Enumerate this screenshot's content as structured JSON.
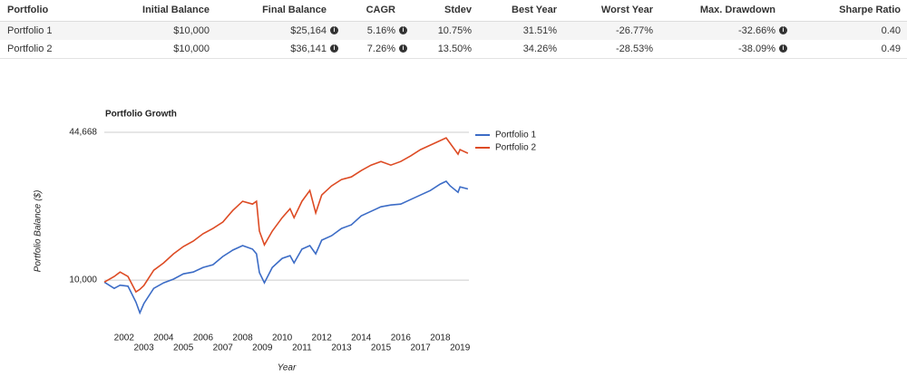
{
  "table": {
    "header": [
      "Portfolio",
      "Initial Balance",
      "Final Balance",
      "CAGR",
      "Stdev",
      "Best Year",
      "Worst Year",
      "Max. Drawdown",
      "Sharpe Ratio"
    ],
    "rows": [
      [
        "Portfolio 1",
        "$10,000",
        "$25,164",
        "5.16%",
        "10.75%",
        "31.51%",
        "-26.77%",
        "-32.66%",
        "0.40"
      ],
      [
        "Portfolio 2",
        "$10,000",
        "$36,141",
        "7.26%",
        "13.50%",
        "34.26%",
        "-28.53%",
        "-38.09%",
        "0.49"
      ]
    ]
  },
  "chart_data": {
    "type": "line",
    "title": "Portfolio Growth",
    "x_label": "Year",
    "y_label": "Portfolio Balance ($)",
    "log_scale": true,
    "grid": true,
    "legend": "right",
    "x": [
      2001,
      2001.5,
      2001.8,
      2002.2,
      2002.6,
      2002.8,
      2003,
      2003.5,
      2004,
      2004.5,
      2005,
      2005.5,
      2006,
      2006.5,
      2007,
      2007.5,
      2008,
      2008.5,
      2008.7,
      2008.85,
      2009.1,
      2009.5,
      2010,
      2010.4,
      2010.6,
      2011,
      2011.4,
      2011.7,
      2012,
      2012.5,
      2013,
      2013.5,
      2014,
      2014.5,
      2015,
      2015.5,
      2016,
      2016.5,
      2017,
      2017.5,
      2018,
      2018.3,
      2018.5,
      2018.9,
      2019,
      2019.4
    ],
    "series": [
      {
        "name": "Portfolio 1",
        "color": "#3c6cc6",
        "values": [
          9800,
          9200,
          9500,
          9400,
          8000,
          7180,
          7880,
          9200,
          9730,
          10100,
          10650,
          10850,
          11370,
          11690,
          12700,
          13550,
          14180,
          13680,
          13050,
          10800,
          9730,
          11370,
          12460,
          12810,
          11900,
          13680,
          14180,
          13050,
          14980,
          15680,
          16870,
          17500,
          19170,
          20060,
          21000,
          21400,
          21590,
          22610,
          23670,
          24790,
          26450,
          27200,
          25960,
          24340,
          25710,
          25164
        ]
      },
      {
        "name": "Portfolio 2",
        "color": "#dd4b24",
        "values": [
          9800,
          10370,
          10850,
          10370,
          8870,
          9100,
          9460,
          11050,
          11900,
          13050,
          14050,
          14840,
          16000,
          16870,
          18000,
          20230,
          22210,
          21590,
          22210,
          16420,
          14290,
          16420,
          18820,
          20600,
          18820,
          22210,
          24790,
          19740,
          23670,
          25960,
          27700,
          28450,
          30330,
          32040,
          33240,
          32040,
          33240,
          35150,
          37480,
          39250,
          41100,
          42250,
          39980,
          35800,
          37480,
          36141
        ]
      }
    ],
    "xlim": [
      2001,
      2019.45
    ],
    "xticks": [
      2002,
      2003,
      2004,
      2005,
      2006,
      2007,
      2008,
      2009,
      2010,
      2011,
      2012,
      2013,
      2014,
      2015,
      2016,
      2017,
      2018,
      2019
    ],
    "ylim": [
      5985,
      44668
    ],
    "yticks": [
      {
        "value": 10000,
        "label": "10,000"
      },
      {
        "value": 44668,
        "label": "44,668"
      }
    ]
  }
}
